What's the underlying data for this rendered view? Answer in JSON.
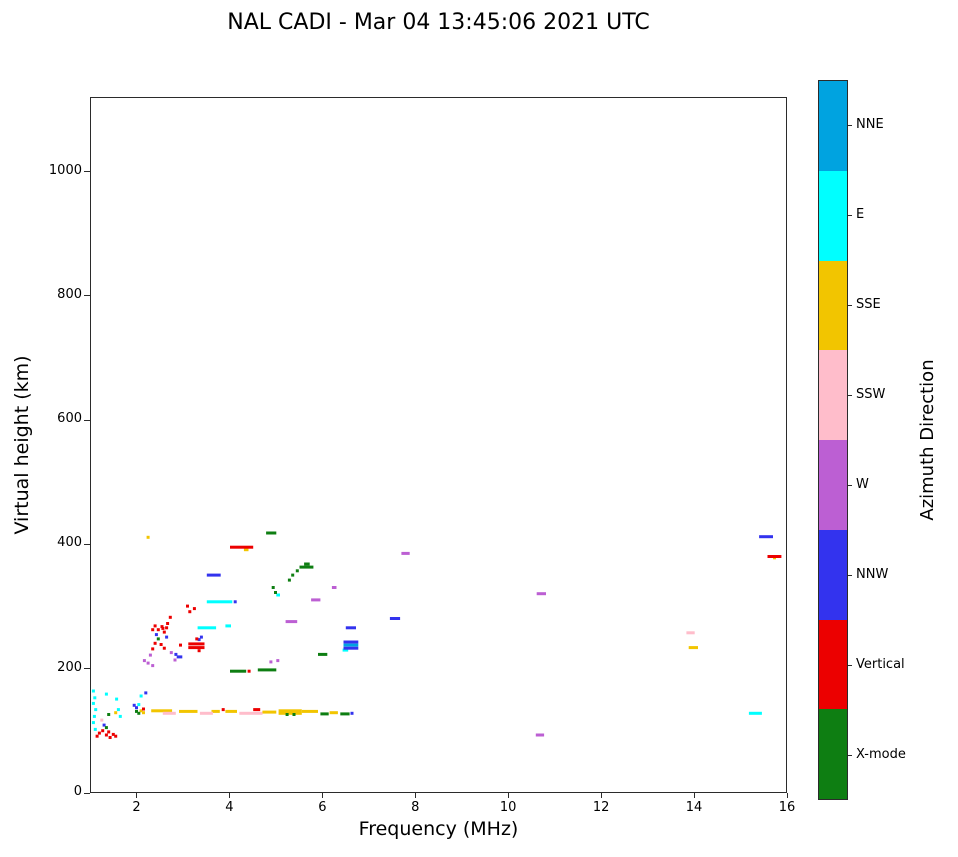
{
  "chart_data": {
    "type": "scatter",
    "title": "NAL CADI - Mar 04 13:45:06 2021 UTC",
    "xlabel": "Frequency (MHz)",
    "ylabel": "Virtual height (km)",
    "colorbar_label": "Azimuth Direction",
    "xlim": [
      1,
      16
    ],
    "ylim": [
      0,
      1120
    ],
    "xticks": [
      2,
      4,
      6,
      8,
      10,
      12,
      14,
      16
    ],
    "yticks": [
      0,
      200,
      400,
      600,
      800,
      1000
    ],
    "grid": false,
    "legend_position": "right-colorbar",
    "point_note": "points are [frequency_MHz, virtual_height_km, optional_segment_width_MHz]",
    "series": [
      {
        "name": "NNE",
        "color": "#00A3E0",
        "points": [
          [
            6.45,
            237,
            0.32
          ]
        ]
      },
      {
        "name": "E",
        "color": "#00FFFF",
        "points": [
          [
            1.02,
            163
          ],
          [
            1.05,
            152
          ],
          [
            1.02,
            143
          ],
          [
            1.07,
            133
          ],
          [
            1.04,
            122
          ],
          [
            1.02,
            112
          ],
          [
            1.06,
            101
          ],
          [
            1.3,
            158
          ],
          [
            1.52,
            150
          ],
          [
            1.56,
            133
          ],
          [
            1.6,
            122
          ],
          [
            2.0,
            141
          ],
          [
            2.05,
            155
          ],
          [
            3.3,
            265,
            0.4
          ],
          [
            3.5,
            307,
            0.55
          ],
          [
            3.9,
            268,
            0.12
          ],
          [
            5.0,
            318,
            0.08
          ],
          [
            6.43,
            229,
            0.12
          ],
          [
            15.2,
            127,
            0.28
          ]
        ]
      },
      {
        "name": "SSE",
        "color": "#F2C500",
        "points": [
          [
            1.5,
            128
          ],
          [
            2.05,
            131
          ],
          [
            2.1,
            128
          ],
          [
            2.2,
            411
          ],
          [
            2.3,
            131,
            0.45
          ],
          [
            2.9,
            130,
            0.4
          ],
          [
            3.6,
            130,
            0.18
          ],
          [
            3.9,
            130,
            0.25
          ],
          [
            4.3,
            391,
            0.1
          ],
          [
            4.7,
            129,
            0.3
          ],
          [
            5.05,
            127,
            0.5
          ],
          [
            5.05,
            131,
            0.5
          ],
          [
            5.55,
            130,
            0.35
          ],
          [
            6.15,
            128,
            0.18
          ],
          [
            13.9,
            233,
            0.2
          ],
          [
            15.72,
            378
          ]
        ]
      },
      {
        "name": "SSW",
        "color": "#FFBDCB",
        "points": [
          [
            1.2,
            116
          ],
          [
            2.55,
            127,
            0.28
          ],
          [
            3.35,
            127,
            0.28
          ],
          [
            4.2,
            127,
            0.5
          ],
          [
            13.85,
            257,
            0.18
          ]
        ]
      },
      {
        "name": "W",
        "color": "#BC5FD3",
        "points": [
          [
            2.12,
            212
          ],
          [
            2.2,
            208
          ],
          [
            2.25,
            221
          ],
          [
            2.3,
            204
          ],
          [
            2.7,
            225
          ],
          [
            2.78,
            213
          ],
          [
            4.85,
            210
          ],
          [
            5.0,
            212
          ],
          [
            5.2,
            275,
            0.25
          ],
          [
            5.75,
            310,
            0.2
          ],
          [
            6.2,
            330,
            0.1
          ],
          [
            7.7,
            385,
            0.18
          ],
          [
            10.62,
            320,
            0.2
          ],
          [
            10.6,
            92,
            0.18
          ]
        ]
      },
      {
        "name": "NNW",
        "color": "#3333EE",
        "points": [
          [
            1.25,
            108
          ],
          [
            1.9,
            140
          ],
          [
            1.95,
            136
          ],
          [
            2.15,
            160
          ],
          [
            2.38,
            254
          ],
          [
            2.6,
            250
          ],
          [
            2.8,
            222
          ],
          [
            2.85,
            218,
            0.12
          ],
          [
            3.3,
            246
          ],
          [
            3.35,
            250
          ],
          [
            3.5,
            350,
            0.3
          ],
          [
            4.08,
            307
          ],
          [
            6.45,
            232,
            0.32
          ],
          [
            6.45,
            242,
            0.32
          ],
          [
            6.5,
            265,
            0.22
          ],
          [
            6.6,
            127
          ],
          [
            7.45,
            280,
            0.22
          ],
          [
            15.42,
            412,
            0.3
          ]
        ]
      },
      {
        "name": "Vertical",
        "color": "#EC0000",
        "points": [
          [
            1.1,
            90
          ],
          [
            1.15,
            95
          ],
          [
            1.22,
            99
          ],
          [
            1.3,
            92
          ],
          [
            1.35,
            97
          ],
          [
            1.38,
            88
          ],
          [
            1.45,
            93
          ],
          [
            1.5,
            90
          ],
          [
            2.1,
            134
          ],
          [
            2.3,
            231
          ],
          [
            2.3,
            262
          ],
          [
            2.35,
            240
          ],
          [
            2.35,
            268
          ],
          [
            2.42,
            262
          ],
          [
            2.48,
            238
          ],
          [
            2.5,
            267
          ],
          [
            2.52,
            264
          ],
          [
            2.55,
            232
          ],
          [
            2.55,
            258
          ],
          [
            2.6,
            265
          ],
          [
            2.62,
            272
          ],
          [
            2.68,
            282
          ],
          [
            2.9,
            237
          ],
          [
            3.05,
            300
          ],
          [
            3.1,
            291
          ],
          [
            3.1,
            233,
            0.35
          ],
          [
            3.1,
            239,
            0.35
          ],
          [
            3.2,
            296
          ],
          [
            3.25,
            247
          ],
          [
            3.3,
            228
          ],
          [
            3.82,
            133
          ],
          [
            4.0,
            395,
            0.5
          ],
          [
            4.38,
            195
          ],
          [
            4.5,
            133,
            0.15
          ],
          [
            15.6,
            380,
            0.3
          ]
        ]
      },
      {
        "name": "X-mode",
        "color": "#0E7E12",
        "points": [
          [
            1.3,
            104
          ],
          [
            1.35,
            125
          ],
          [
            1.95,
            130
          ],
          [
            2.0,
            127
          ],
          [
            2.42,
            247
          ],
          [
            4.0,
            195,
            0.35
          ],
          [
            4.6,
            197,
            0.4
          ],
          [
            4.78,
            418,
            0.22
          ],
          [
            4.9,
            330
          ],
          [
            4.95,
            322
          ],
          [
            5.2,
            125
          ],
          [
            5.25,
            342
          ],
          [
            5.32,
            350
          ],
          [
            5.35,
            125
          ],
          [
            5.42,
            357
          ],
          [
            5.5,
            363,
            0.3
          ],
          [
            5.6,
            368,
            0.12
          ],
          [
            5.9,
            222,
            0.2
          ],
          [
            5.95,
            126,
            0.18
          ],
          [
            6.38,
            126,
            0.2
          ]
        ]
      }
    ]
  }
}
